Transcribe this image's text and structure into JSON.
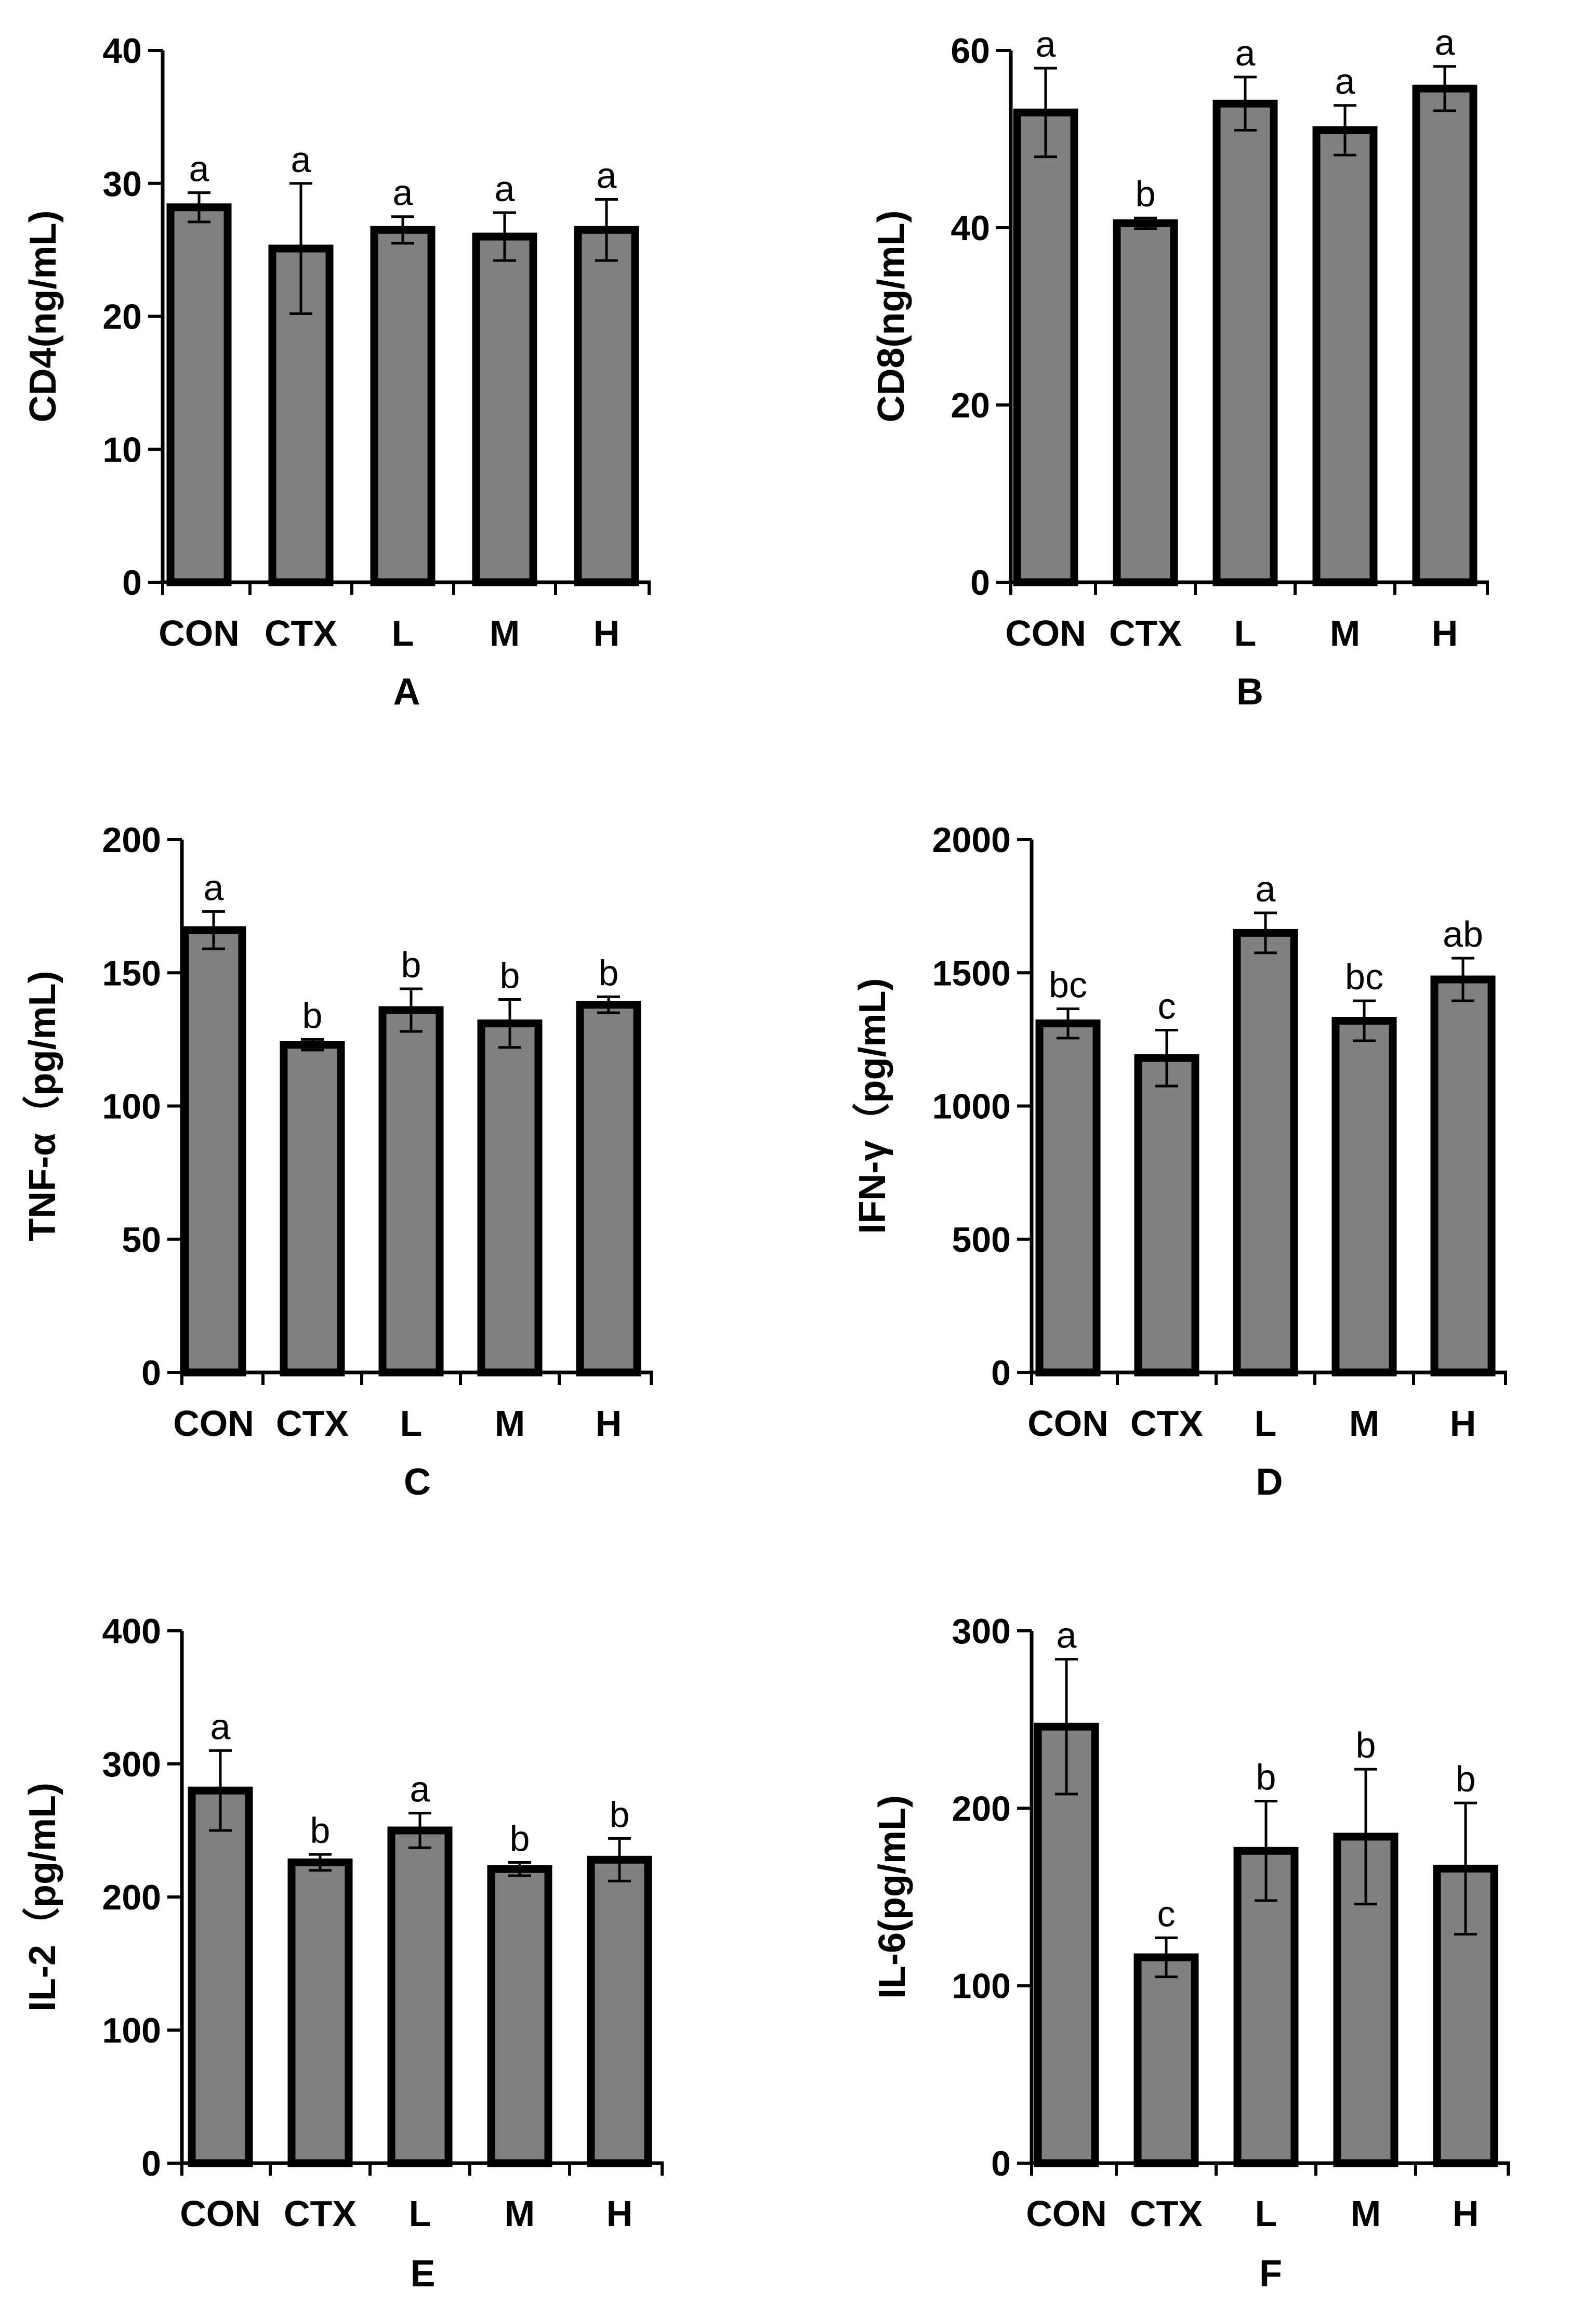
{
  "chart_data": [
    {
      "type": "bar",
      "panel": "A",
      "ylabel": "CD4(ng/mL)",
      "ylim": [
        0,
        40
      ],
      "yticks": [
        0,
        10,
        20,
        30,
        40
      ],
      "categories": [
        "CON",
        "CTX",
        "L",
        "M",
        "H"
      ],
      "values": [
        28.2,
        25.1,
        26.5,
        26.0,
        26.5
      ],
      "errors": [
        1.1,
        4.9,
        1.0,
        1.8,
        2.3
      ],
      "significance": [
        "a",
        "a",
        "a",
        "a",
        "a"
      ]
    },
    {
      "type": "bar",
      "panel": "B",
      "ylabel": "CD8(ng/mL)",
      "ylim": [
        0,
        60
      ],
      "yticks": [
        0,
        20,
        40,
        60
      ],
      "categories": [
        "CON",
        "CTX",
        "L",
        "M",
        "H"
      ],
      "values": [
        53.0,
        40.5,
        54.0,
        51.0,
        55.7
      ],
      "errors": [
        5.0,
        0.6,
        3.0,
        2.8,
        2.5
      ],
      "significance": [
        "a",
        "b",
        "a",
        "a",
        "a"
      ]
    },
    {
      "type": "bar",
      "panel": "C",
      "ylabel": "TNF-α（pg/mL)",
      "ylim": [
        0,
        200
      ],
      "yticks": [
        0,
        50,
        100,
        150,
        200
      ],
      "categories": [
        "CON",
        "CTX",
        "L",
        "M",
        "H"
      ],
      "values": [
        166,
        123,
        136,
        131,
        138
      ],
      "errors": [
        7,
        2,
        8,
        9,
        3
      ],
      "significance": [
        "a",
        "b",
        "b",
        "b",
        "b"
      ]
    },
    {
      "type": "bar",
      "panel": "D",
      "ylabel": "IFN-γ（pg/mL)",
      "ylim": [
        0,
        2000
      ],
      "yticks": [
        0,
        500,
        1000,
        1500,
        2000
      ],
      "categories": [
        "CON",
        "CTX",
        "L",
        "M",
        "H"
      ],
      "values": [
        1310,
        1180,
        1650,
        1320,
        1475
      ],
      "errors": [
        55,
        105,
        75,
        75,
        80
      ],
      "significance": [
        "bc",
        "c",
        "a",
        "bc",
        "ab"
      ]
    },
    {
      "type": "bar",
      "panel": "E",
      "ylabel": "IL-2（pg/mL)",
      "ylim": [
        0,
        400
      ],
      "yticks": [
        0,
        100,
        200,
        300,
        400
      ],
      "categories": [
        "CON",
        "CTX",
        "L",
        "M",
        "H"
      ],
      "values": [
        280,
        226,
        250,
        221,
        228
      ],
      "errors": [
        30,
        6,
        13,
        5,
        16
      ],
      "significance": [
        "a",
        "b",
        "a",
        "b",
        "b"
      ]
    },
    {
      "type": "bar",
      "panel": "F",
      "ylabel": "IL-6(pg/mL)",
      "ylim": [
        0,
        300
      ],
      "yticks": [
        0,
        100,
        200,
        300
      ],
      "categories": [
        "CON",
        "CTX",
        "L",
        "M",
        "H"
      ],
      "values": [
        246,
        116,
        176,
        184,
        166
      ],
      "errors": [
        38,
        11,
        28,
        38,
        37
      ],
      "significance": [
        "a",
        "c",
        "b",
        "b",
        "b"
      ]
    }
  ],
  "colors": {
    "bar_fill": "#808080",
    "stroke": "#000000",
    "background": "#ffffff"
  }
}
